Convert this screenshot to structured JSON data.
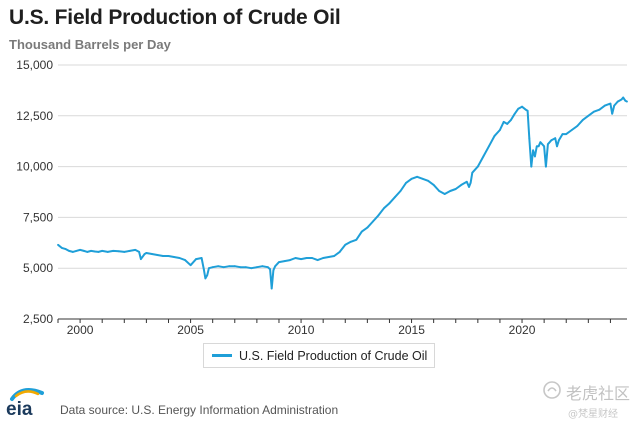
{
  "title": "U.S. Field Production of Crude Oil",
  "subtitle": "Thousand Barrels per Day",
  "source": "Data source: U.S. Energy Information Administration",
  "logo_text": "eia",
  "watermark": {
    "main": "老虎社区",
    "sub": "@梵星财经"
  },
  "colors": {
    "line": "#1f9fd8",
    "grid": "#d9d9d9",
    "axis": "#333333"
  },
  "chart_data": {
    "type": "line",
    "title": "U.S. Field Production of Crude Oil",
    "ylabel": "Thousand Barrels per Day",
    "xlabel": "",
    "xlim": [
      1999.0,
      2024.75
    ],
    "ylim": [
      2500,
      15000
    ],
    "x_ticks": [
      2000,
      2005,
      2010,
      2015,
      2020
    ],
    "x_tick_labels": [
      "2000",
      "2005",
      "2010",
      "2015",
      "2020"
    ],
    "y_ticks": [
      2500,
      5000,
      7500,
      10000,
      12500,
      15000
    ],
    "y_tick_labels": [
      "2,500",
      "5,000",
      "7,500",
      "10,000",
      "12,500",
      "15,000"
    ],
    "grid": "horizontal",
    "legend": "bottom-center",
    "series": [
      {
        "name": "U.S. Field Production of Crude Oil",
        "x": [
          1999.0,
          1999.17,
          1999.33,
          1999.5,
          1999.67,
          1999.83,
          2000.0,
          2000.17,
          2000.33,
          2000.5,
          2000.67,
          2000.83,
          2001.0,
          2001.25,
          2001.5,
          2001.75,
          2002.0,
          2002.25,
          2002.5,
          2002.67,
          2002.75,
          2002.92,
          2003.0,
          2003.25,
          2003.5,
          2003.75,
          2004.0,
          2004.25,
          2004.5,
          2004.75,
          2005.0,
          2005.25,
          2005.5,
          2005.6,
          2005.67,
          2005.75,
          2005.83,
          2006.0,
          2006.25,
          2006.5,
          2006.75,
          2007.0,
          2007.25,
          2007.5,
          2007.75,
          2008.0,
          2008.25,
          2008.5,
          2008.6,
          2008.67,
          2008.75,
          2008.83,
          2009.0,
          2009.25,
          2009.5,
          2009.75,
          2010.0,
          2010.25,
          2010.5,
          2010.75,
          2011.0,
          2011.25,
          2011.5,
          2011.75,
          2012.0,
          2012.25,
          2012.5,
          2012.75,
          2013.0,
          2013.25,
          2013.5,
          2013.75,
          2014.0,
          2014.25,
          2014.5,
          2014.75,
          2015.0,
          2015.25,
          2015.5,
          2015.75,
          2016.0,
          2016.25,
          2016.5,
          2016.75,
          2017.0,
          2017.25,
          2017.5,
          2017.6,
          2017.67,
          2017.75,
          2018.0,
          2018.25,
          2018.5,
          2018.75,
          2019.0,
          2019.17,
          2019.33,
          2019.5,
          2019.67,
          2019.83,
          2020.0,
          2020.17,
          2020.25,
          2020.33,
          2020.42,
          2020.5,
          2020.58,
          2020.67,
          2020.75,
          2020.83,
          2021.0,
          2021.08,
          2021.17,
          2021.33,
          2021.5,
          2021.58,
          2021.67,
          2021.83,
          2022.0,
          2022.25,
          2022.5,
          2022.75,
          2023.0,
          2023.25,
          2023.5,
          2023.75,
          2024.0,
          2024.08,
          2024.17,
          2024.33,
          2024.5,
          2024.58,
          2024.67,
          2024.75
        ],
        "values": [
          6150,
          6000,
          5950,
          5850,
          5800,
          5850,
          5900,
          5850,
          5800,
          5850,
          5820,
          5800,
          5850,
          5800,
          5850,
          5830,
          5800,
          5850,
          5900,
          5800,
          5450,
          5700,
          5750,
          5700,
          5650,
          5600,
          5600,
          5550,
          5500,
          5400,
          5150,
          5450,
          5500,
          4950,
          4500,
          4650,
          5000,
          5050,
          5100,
          5050,
          5100,
          5100,
          5050,
          5050,
          5000,
          5050,
          5100,
          5050,
          4950,
          4000,
          4900,
          5100,
          5300,
          5350,
          5400,
          5500,
          5450,
          5500,
          5500,
          5400,
          5500,
          5550,
          5600,
          5800,
          6150,
          6300,
          6400,
          6800,
          7000,
          7300,
          7600,
          7950,
          8200,
          8500,
          8800,
          9200,
          9400,
          9500,
          9400,
          9300,
          9100,
          8800,
          8650,
          8800,
          8900,
          9100,
          9250,
          9000,
          9200,
          9700,
          10000,
          10500,
          11000,
          11500,
          11800,
          12200,
          12100,
          12300,
          12600,
          12850,
          12950,
          12800,
          12750,
          11400,
          10000,
          10800,
          10500,
          11000,
          11000,
          11200,
          11000,
          10000,
          11100,
          11300,
          11400,
          11000,
          11300,
          11600,
          11600,
          11800,
          12000,
          12300,
          12500,
          12700,
          12800,
          13000,
          13100,
          12600,
          13000,
          13200,
          13300,
          13400,
          13250,
          13200
        ]
      }
    ]
  }
}
